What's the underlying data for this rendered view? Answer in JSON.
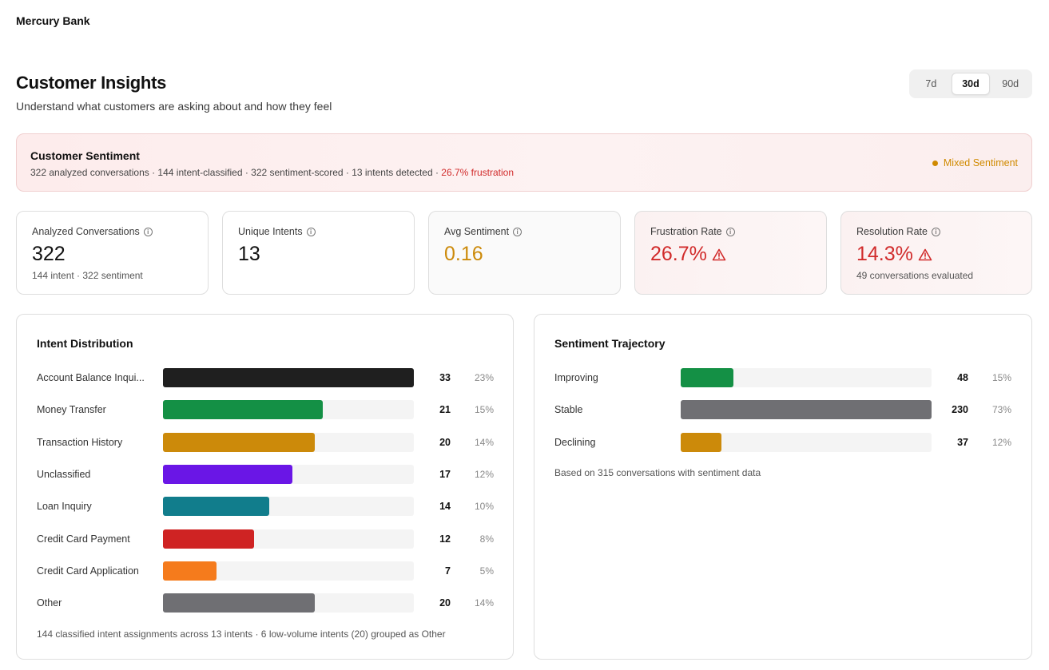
{
  "org": {
    "name": "Mercury Bank"
  },
  "header": {
    "title": "Customer Insights",
    "subtitle": "Understand what customers are asking about and how they feel"
  },
  "range": {
    "options": [
      {
        "label": "7d",
        "active": false
      },
      {
        "label": "30d",
        "active": true
      },
      {
        "label": "90d",
        "active": false
      }
    ]
  },
  "banner": {
    "title": "Customer Sentiment",
    "summary": "322 analyzed conversations · 144 intent-classified · 322 sentiment-scored · 13 intents detected · ",
    "frustration": "26.7% frustration",
    "status": "Mixed Sentiment",
    "status_color": "#d08a00"
  },
  "kpis": [
    {
      "label": "Analyzed Conversations",
      "value": "322",
      "sub": "144 intent · 322 sentiment",
      "tone": "neutral"
    },
    {
      "label": "Unique Intents",
      "value": "13",
      "sub": "",
      "tone": "neutral"
    },
    {
      "label": "Avg Sentiment",
      "value": "0.16",
      "sub": "",
      "tone": "amber"
    },
    {
      "label": "Frustration Rate",
      "value": "26.7%",
      "sub": "",
      "tone": "red",
      "warning": true
    },
    {
      "label": "Resolution Rate",
      "value": "14.3%",
      "sub": "49 conversations evaluated",
      "tone": "red",
      "warning": true
    }
  ],
  "intent": {
    "title": "Intent Distribution",
    "max": 33,
    "rows": [
      {
        "label": "Account Balance Inqui...",
        "count": 33,
        "pct": "23%",
        "color": "#1f1f1f"
      },
      {
        "label": "Money Transfer",
        "count": 21,
        "pct": "15%",
        "color": "#149045"
      },
      {
        "label": "Transaction History",
        "count": 20,
        "pct": "14%",
        "color": "#cc8a0a"
      },
      {
        "label": "Unclassified",
        "count": 17,
        "pct": "12%",
        "color": "#6a16e6"
      },
      {
        "label": "Loan Inquiry",
        "count": 14,
        "pct": "10%",
        "color": "#117d8c"
      },
      {
        "label": "Credit Card Payment",
        "count": 12,
        "pct": "8%",
        "color": "#cf2323"
      },
      {
        "label": "Credit Card Application",
        "count": 7,
        "pct": "5%",
        "color": "#f57b1c"
      },
      {
        "label": "Other",
        "count": 20,
        "pct": "14%",
        "color": "#6f6f73"
      }
    ],
    "footnote": "144 classified intent assignments across 13 intents · 6 low-volume intents (20) grouped as Other"
  },
  "trajectory": {
    "title": "Sentiment Trajectory",
    "max": 230,
    "rows": [
      {
        "label": "Improving",
        "count": 48,
        "pct": "15%",
        "color": "#149045"
      },
      {
        "label": "Stable",
        "count": 230,
        "pct": "73%",
        "color": "#6f6f73"
      },
      {
        "label": "Declining",
        "count": 37,
        "pct": "12%",
        "color": "#cc8a0a"
      }
    ],
    "footnote": "Based on 315 conversations with sentiment data"
  }
}
